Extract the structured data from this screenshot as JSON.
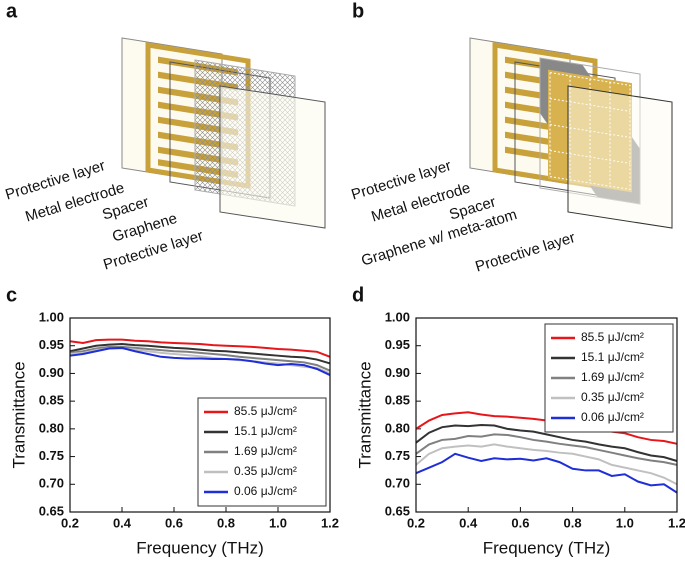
{
  "panel_labels": [
    "a",
    "b",
    "c",
    "d"
  ],
  "diagrams": [
    {
      "labels": [
        "Protective layer",
        "Metal electrode",
        "Spacer",
        "Graphene",
        "Protective layer"
      ]
    },
    {
      "labels": [
        "Protective layer",
        "Metal electrode",
        "Spacer",
        "Graphene w/ meta-atom",
        "Protective layer"
      ]
    }
  ],
  "chart_data": [
    {
      "type": "line",
      "x_label": "Frequency (THz)",
      "y_label": "Transmittance",
      "x": [
        0.2,
        0.25,
        0.3,
        0.35,
        0.4,
        0.45,
        0.5,
        0.55,
        0.6,
        0.65,
        0.7,
        0.75,
        0.8,
        0.85,
        0.9,
        0.95,
        1.0,
        1.05,
        1.1,
        1.15,
        1.2
      ],
      "xlim": [
        0.2,
        1.2
      ],
      "xticks": [
        0.2,
        0.4,
        0.6,
        0.8,
        {
          "value": 1.0,
          "label": "1.0"
        },
        1.2
      ],
      "ylim": [
        0.65,
        1.0
      ],
      "yticks": [
        0.65,
        {
          "value": 0.7,
          "label": "0.70"
        },
        0.75,
        {
          "value": 0.8,
          "label": "0.80"
        },
        0.85,
        {
          "value": 0.9,
          "label": "0.90"
        },
        0.95,
        {
          "value": 1.0,
          "label": "1.00"
        }
      ],
      "legend": "lower right",
      "series": [
        {
          "name": "85.5 μJ/cm²",
          "color": "#e8161b",
          "values": [
            0.958,
            0.955,
            0.96,
            0.961,
            0.961,
            0.959,
            0.958,
            0.956,
            0.955,
            0.954,
            0.953,
            0.951,
            0.95,
            0.949,
            0.948,
            0.946,
            0.944,
            0.943,
            0.941,
            0.939,
            0.93
          ]
        },
        {
          "name": "15.1 μJ/cm²",
          "color": "#333333",
          "values": [
            0.94,
            0.945,
            0.95,
            0.952,
            0.953,
            0.951,
            0.95,
            0.948,
            0.946,
            0.945,
            0.943,
            0.941,
            0.94,
            0.938,
            0.936,
            0.934,
            0.932,
            0.93,
            0.929,
            0.925,
            0.918
          ]
        },
        {
          "name": "1.69 μJ/cm²",
          "color": "#808080",
          "values": [
            0.937,
            0.94,
            0.945,
            0.948,
            0.948,
            0.946,
            0.944,
            0.942,
            0.94,
            0.939,
            0.937,
            0.935,
            0.933,
            0.93,
            0.928,
            0.926,
            0.924,
            0.922,
            0.92,
            0.915,
            0.905
          ]
        },
        {
          "name": "0.35 μJ/cm²",
          "color": "#c0c0c0",
          "values": [
            0.935,
            0.937,
            0.942,
            0.945,
            0.945,
            0.943,
            0.94,
            0.937,
            0.935,
            0.933,
            0.931,
            0.928,
            0.926,
            0.924,
            0.922,
            0.92,
            0.918,
            0.915,
            0.912,
            0.91,
            0.9
          ]
        },
        {
          "name": "0.06 μJ/cm²",
          "color": "#1f2fd8",
          "values": [
            0.932,
            0.935,
            0.94,
            0.945,
            0.946,
            0.94,
            0.935,
            0.93,
            0.928,
            0.927,
            0.927,
            0.926,
            0.926,
            0.925,
            0.922,
            0.918,
            0.915,
            0.917,
            0.915,
            0.908,
            0.897
          ]
        }
      ]
    },
    {
      "type": "line",
      "x_label": "Frequency (THz)",
      "y_label": "Transmittance",
      "x": [
        0.2,
        0.25,
        0.3,
        0.35,
        0.4,
        0.45,
        0.5,
        0.55,
        0.6,
        0.65,
        0.7,
        0.75,
        0.8,
        0.85,
        0.9,
        0.95,
        1.0,
        1.05,
        1.1,
        1.15,
        1.2
      ],
      "xlim": [
        0.2,
        1.2
      ],
      "xticks": [
        0.2,
        0.4,
        0.6,
        0.8,
        {
          "value": 1.0,
          "label": "1.0"
        },
        1.2
      ],
      "ylim": [
        0.65,
        1.0
      ],
      "yticks": [
        0.65,
        {
          "value": 0.7,
          "label": "0.70"
        },
        0.75,
        {
          "value": 0.8,
          "label": "0.80"
        },
        0.85,
        {
          "value": 0.9,
          "label": "0.90"
        },
        0.95,
        {
          "value": 1.0,
          "label": "1.00"
        }
      ],
      "legend": "upper right",
      "series": [
        {
          "name": "85.5 μJ/cm²",
          "color": "#e8161b",
          "values": [
            0.8,
            0.815,
            0.825,
            0.828,
            0.83,
            0.826,
            0.823,
            0.822,
            0.82,
            0.818,
            0.815,
            0.811,
            0.807,
            0.803,
            0.798,
            0.795,
            0.792,
            0.785,
            0.78,
            0.778,
            0.773
          ]
        },
        {
          "name": "15.1 μJ/cm²",
          "color": "#333333",
          "values": [
            0.775,
            0.793,
            0.803,
            0.806,
            0.805,
            0.807,
            0.806,
            0.8,
            0.797,
            0.795,
            0.79,
            0.785,
            0.78,
            0.777,
            0.772,
            0.768,
            0.765,
            0.758,
            0.752,
            0.749,
            0.742
          ]
        },
        {
          "name": "1.69 μJ/cm²",
          "color": "#808080",
          "values": [
            0.755,
            0.772,
            0.78,
            0.782,
            0.787,
            0.786,
            0.79,
            0.789,
            0.785,
            0.78,
            0.777,
            0.773,
            0.77,
            0.767,
            0.762,
            0.757,
            0.752,
            0.747,
            0.743,
            0.74,
            0.735
          ]
        },
        {
          "name": "0.35 μJ/cm²",
          "color": "#c0c0c0",
          "values": [
            0.735,
            0.755,
            0.765,
            0.768,
            0.77,
            0.768,
            0.772,
            0.768,
            0.765,
            0.762,
            0.76,
            0.757,
            0.755,
            0.75,
            0.745,
            0.735,
            0.73,
            0.725,
            0.72,
            0.712,
            0.7
          ]
        },
        {
          "name": "0.06 μJ/cm²",
          "color": "#1f2fd8",
          "values": [
            0.72,
            0.73,
            0.74,
            0.755,
            0.748,
            0.742,
            0.747,
            0.745,
            0.746,
            0.743,
            0.747,
            0.74,
            0.728,
            0.725,
            0.725,
            0.715,
            0.718,
            0.705,
            0.698,
            0.7,
            0.685
          ]
        }
      ]
    }
  ]
}
